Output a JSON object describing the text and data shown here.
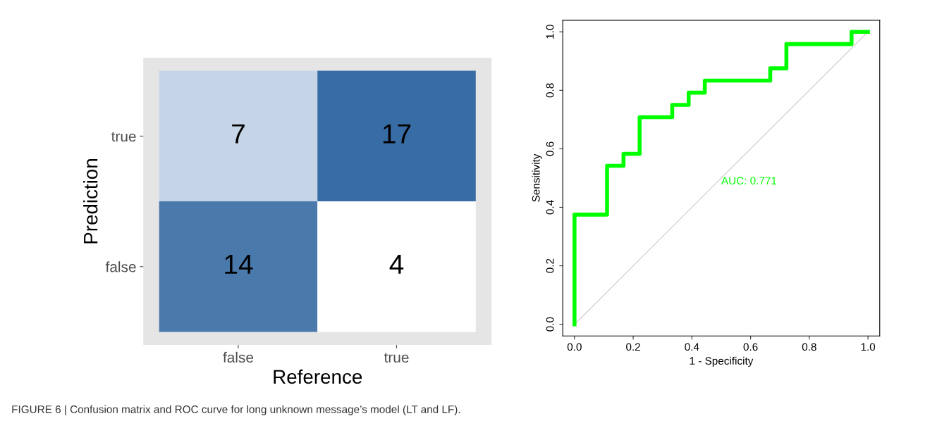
{
  "chart_data": [
    {
      "type": "heatmap",
      "xlabel": "Reference",
      "ylabel": "Prediction",
      "categories": [
        "false",
        "true"
      ],
      "y_categories": [
        "true",
        "false"
      ],
      "cells": [
        [
          7,
          17
        ],
        [
          14,
          4
        ]
      ],
      "data_labels": true,
      "grid": false,
      "annotations": [
        "FIGURE 6 | Confusion matrix and ROC curve for long unknown message’s model (LT and LF)."
      ]
    },
    {
      "type": "step",
      "xlabel": "1 - Specificity",
      "ylabel": "Sensitivity",
      "xlim": [
        -0.04,
        1.04
      ],
      "ylim": [
        -0.04,
        1.04
      ],
      "xticks": [
        {
          "value": 0,
          "label": "0.0"
        },
        0.2,
        0.4,
        0.6,
        0.8,
        {
          "value": 1,
          "label": "1.0"
        }
      ],
      "yticks": [
        {
          "value": 0,
          "label": "0.0"
        },
        0.2,
        0.4,
        0.6,
        0.8,
        {
          "value": 1,
          "label": "1.0"
        }
      ],
      "grid": false,
      "legend": false,
      "annotations": [
        "AUC: 0.771"
      ],
      "series": [
        {
          "type": "line",
          "color": "#d3d3d3",
          "x": [
            0,
            1
          ],
          "values": [
            0,
            1
          ]
        },
        {
          "type": "step",
          "color": "#00ff00",
          "x": [
            0,
            0,
            0.111,
            0.167,
            0.222,
            0.333,
            0.389,
            0.444,
            0.667,
            0.722,
            0.944,
            1
          ],
          "values": [
            0,
            0.375,
            0.542,
            0.583,
            0.708,
            0.75,
            0.792,
            0.833,
            0.875,
            0.958,
            1,
            1
          ]
        }
      ]
    }
  ]
}
